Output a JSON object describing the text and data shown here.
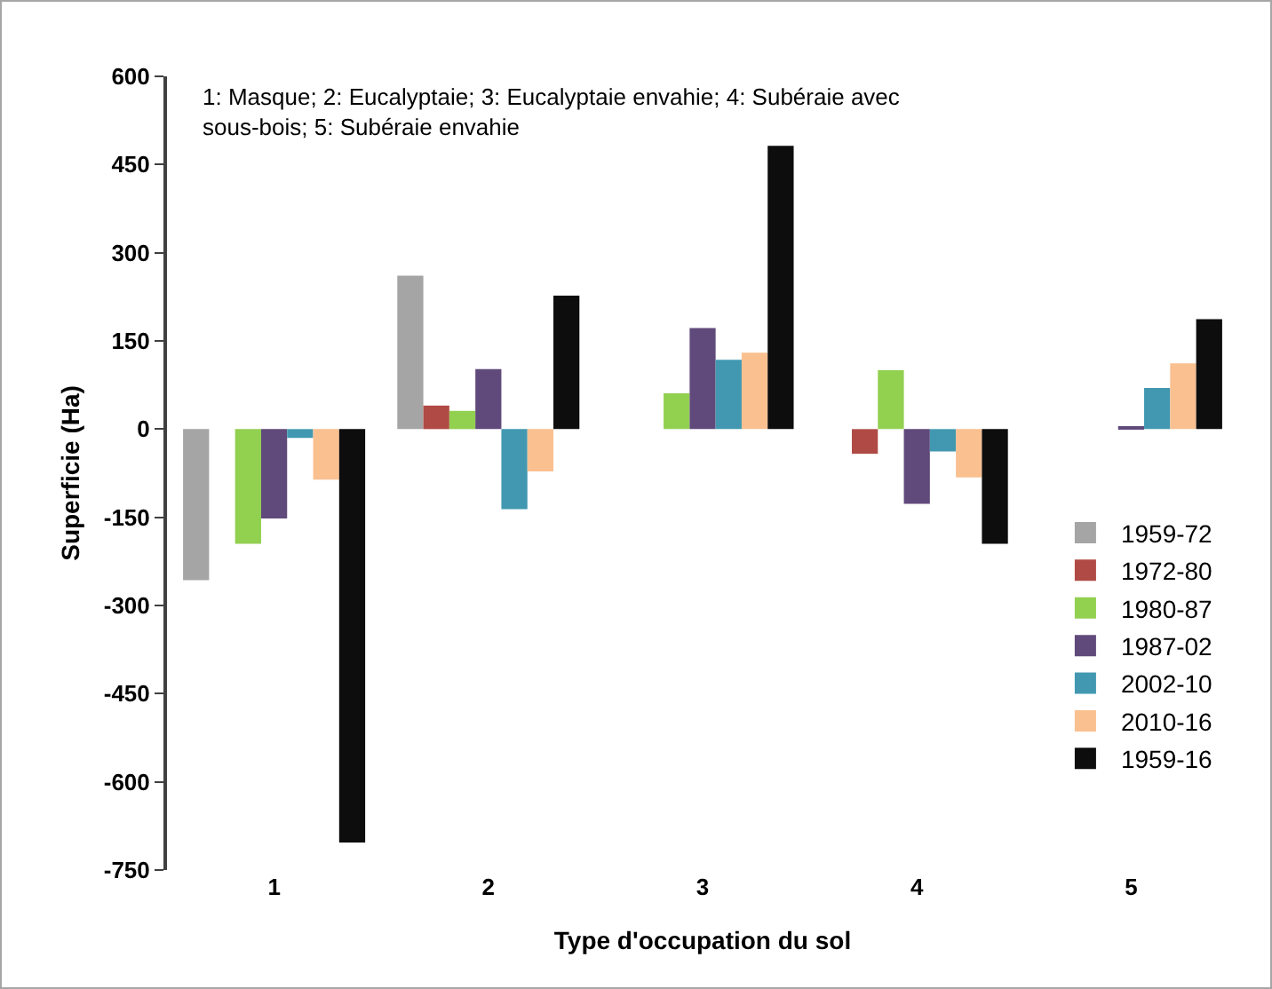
{
  "chart_data": {
    "type": "bar",
    "xlabel": "Type d'occupation du sol",
    "ylabel": "Superficie (Ha)",
    "annotations": [
      "1: Masque; 2: Eucalyptaie; 3: Eucalyptaie envahie; 4: Subéraie avec sous-bois; 5: Subéraie envahie"
    ],
    "categories": [
      "1",
      "2",
      "3",
      "4",
      "5"
    ],
    "series": [
      {
        "name": "1959-72",
        "color": "#a5a5a5",
        "values": [
          -257,
          261,
          0,
          0,
          0
        ]
      },
      {
        "name": "1972-80",
        "color": "#b04a45",
        "values": [
          0,
          40,
          0,
          -42,
          0
        ]
      },
      {
        "name": "1980-87",
        "color": "#92d050",
        "values": [
          -195,
          31,
          61,
          100,
          0
        ]
      },
      {
        "name": "1987-02",
        "color": "#604a7b",
        "values": [
          -152,
          102,
          172,
          -127,
          3
        ]
      },
      {
        "name": "2002-10",
        "color": "#4198b0",
        "values": [
          -15,
          -136,
          118,
          -38,
          70
        ]
      },
      {
        "name": "2010-16",
        "color": "#fac090",
        "values": [
          -86,
          -72,
          130,
          -82,
          112
        ]
      },
      {
        "name": "1959-16",
        "color": "#0d0d0d",
        "values": [
          -703,
          227,
          482,
          -195,
          187
        ]
      }
    ],
    "ylim": [
      -750,
      600
    ],
    "yticks": [
      -750,
      -600,
      -450,
      -300,
      -150,
      0,
      150,
      300,
      450,
      600
    ],
    "grid": false,
    "legend": "right"
  }
}
